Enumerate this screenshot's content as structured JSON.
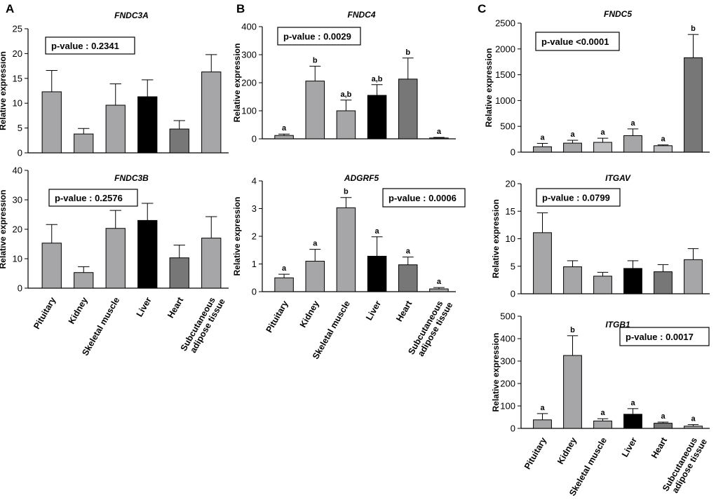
{
  "figure": {
    "panels": [
      {
        "label": "A"
      },
      {
        "label": "B"
      },
      {
        "label": "C"
      }
    ]
  },
  "colors": {
    "light_gray": "#a6a6a8",
    "lighter_gray": "#bfbfc1",
    "black": "#000000",
    "dark_gray": "#777777",
    "axis": "#000000",
    "box_border": "#000000"
  },
  "chart_data": [
    {
      "id": "fndc3a",
      "panel": "A",
      "type": "bar",
      "title": "FNDC3A",
      "ylabel": "Relative expression",
      "ylim": [
        0,
        25
      ],
      "yticks": [
        0,
        5,
        10,
        15,
        20,
        25
      ],
      "categories": [
        "Pituitary",
        "Kidney",
        "Skeletal muscle",
        "Liver",
        "Heart",
        "Subcutaneous adipose tissue"
      ],
      "values": [
        12.3,
        3.8,
        9.6,
        11.3,
        4.8,
        16.3
      ],
      "errors": [
        4.3,
        1.1,
        4.3,
        3.4,
        1.7,
        3.5
      ],
      "letters": [],
      "pvalue": "p-value : 0.2341",
      "bar_colors": [
        "light_gray",
        "light_gray",
        "light_gray",
        "black",
        "dark_gray",
        "light_gray"
      ]
    },
    {
      "id": "fndc3b",
      "panel": "A",
      "type": "bar",
      "title": "FNDC3B",
      "ylabel": "Relative expression",
      "ylim": [
        0,
        40
      ],
      "yticks": [
        0,
        10,
        20,
        30,
        40
      ],
      "categories": [
        "Pituitary",
        "Kidney",
        "Skeletal muscle",
        "Liver",
        "Heart",
        "Subcutaneous adipose tissue"
      ],
      "values": [
        15.3,
        5.3,
        20.3,
        23.0,
        10.3,
        17.0
      ],
      "errors": [
        6.3,
        2.0,
        6.1,
        5.8,
        4.3,
        7.3
      ],
      "letters": [],
      "pvalue": "p-value : 0.2576",
      "bar_colors": [
        "light_gray",
        "light_gray",
        "light_gray",
        "black",
        "dark_gray",
        "light_gray"
      ],
      "x_tick_labels": [
        [
          "Pituitary"
        ],
        [
          "Kidney"
        ],
        [
          "Skeletal muscle"
        ],
        [
          "Liver"
        ],
        [
          "Heart"
        ],
        [
          "Subcutaneous",
          "adipose tissue"
        ]
      ]
    },
    {
      "id": "fndc4",
      "panel": "B",
      "type": "bar",
      "title": "FNDC4",
      "ylabel": "Relative expression",
      "ylim": [
        0,
        400
      ],
      "yticks": [
        0,
        100,
        200,
        300,
        400
      ],
      "categories": [
        "Pituitary",
        "Kidney",
        "Skeletal muscle",
        "Liver",
        "Heart",
        "Subcutaneous adipose tissue"
      ],
      "values": [
        12,
        206,
        100,
        155,
        213,
        3
      ],
      "errors": [
        5,
        53,
        38,
        38,
        75,
        2
      ],
      "letters": [
        "a",
        "b",
        "a,b",
        "a,b",
        "b",
        "a"
      ],
      "pvalue": "p-value : 0.0029",
      "bar_colors": [
        "light_gray",
        "light_gray",
        "light_gray",
        "black",
        "dark_gray",
        "light_gray"
      ]
    },
    {
      "id": "adgrf5",
      "panel": "B",
      "type": "bar",
      "title": "ADGRF5",
      "ylabel": "Relative expression",
      "ylim": [
        0,
        4
      ],
      "yticks": [
        0,
        1,
        2,
        3,
        4
      ],
      "categories": [
        "Pituitary",
        "Kidney",
        "Skeletal muscle",
        "Liver",
        "Heart",
        "Subcutaneous adipose tissue"
      ],
      "values": [
        0.5,
        1.1,
        3.03,
        1.28,
        0.97,
        0.1
      ],
      "errors": [
        0.13,
        0.43,
        0.37,
        0.7,
        0.28,
        0.05
      ],
      "letters": [
        "a",
        "a",
        "b",
        "a",
        "a",
        "a"
      ],
      "pvalue": "p-value : 0.0006",
      "bar_colors": [
        "light_gray",
        "light_gray",
        "light_gray",
        "black",
        "dark_gray",
        "light_gray"
      ],
      "x_tick_labels": [
        [
          "Pituitary"
        ],
        [
          "Kidney"
        ],
        [
          "Skeletal muscle"
        ],
        [
          "Liver"
        ],
        [
          "Heart"
        ],
        [
          "Subcutaneous",
          "adipose tissue"
        ]
      ]
    },
    {
      "id": "fndc5",
      "panel": "C",
      "type": "bar",
      "title": "FNDC5",
      "ylabel": "Relative expression",
      "ylim": [
        0,
        2500
      ],
      "yticks": [
        0,
        500,
        1000,
        1500,
        2000,
        2500
      ],
      "categories": [
        "Pituitary",
        "Kidney",
        "Skeletal muscle",
        "Liver",
        "Heart",
        "Subcutaneous adipose tissue"
      ],
      "values": [
        105,
        175,
        190,
        320,
        125,
        1830
      ],
      "errors": [
        65,
        55,
        80,
        130,
        15,
        450
      ],
      "letters": [
        "a",
        "a",
        "a",
        "a",
        "a",
        "b"
      ],
      "pvalue": "p-value <0.0001",
      "bar_colors": [
        "light_gray",
        "light_gray",
        "lighter_gray",
        "light_gray",
        "lighter_gray",
        "dark_gray"
      ]
    },
    {
      "id": "itgav",
      "panel": "C",
      "type": "bar",
      "title": "ITGAV",
      "ylabel": "Relative expression",
      "ylim": [
        0,
        20
      ],
      "yticks": [
        0,
        5,
        10,
        15,
        20
      ],
      "categories": [
        "Pituitary",
        "Kidney",
        "Skeletal muscle",
        "Liver",
        "Heart",
        "Subcutaneous adipose tissue"
      ],
      "values": [
        11.1,
        4.9,
        3.2,
        4.6,
        4.0,
        6.2
      ],
      "errors": [
        3.6,
        1.1,
        0.7,
        1.4,
        1.3,
        2.0
      ],
      "letters": [],
      "pvalue": "p-value : 0.0799",
      "bar_colors": [
        "light_gray",
        "light_gray",
        "light_gray",
        "black",
        "dark_gray",
        "light_gray"
      ]
    },
    {
      "id": "itgb1",
      "panel": "C",
      "type": "bar",
      "title": "ITGB1",
      "ylabel": "Relative expression",
      "ylim": [
        0,
        500
      ],
      "yticks": [
        0,
        100,
        200,
        300,
        400,
        500
      ],
      "categories": [
        "Pituitary",
        "Kidney",
        "Skeletal muscle",
        "Liver",
        "Heart",
        "Subcutaneous adipose tissue"
      ],
      "values": [
        38,
        325,
        33,
        63,
        23,
        10
      ],
      "errors": [
        28,
        88,
        10,
        25,
        5,
        7
      ],
      "letters": [
        "a",
        "b",
        "a",
        "a",
        "a",
        "a"
      ],
      "pvalue": "p-value : 0.0017",
      "bar_colors": [
        "light_gray",
        "light_gray",
        "light_gray",
        "black",
        "dark_gray",
        "light_gray"
      ],
      "x_tick_labels": [
        [
          "Pituitary"
        ],
        [
          "Kidney"
        ],
        [
          "Skeletal muscle"
        ],
        [
          "Liver"
        ],
        [
          "Heart"
        ],
        [
          "Subcutaneous",
          "adipose tissue"
        ]
      ]
    }
  ]
}
